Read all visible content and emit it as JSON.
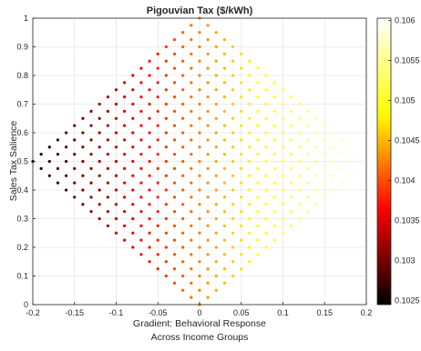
{
  "chart_data": {
    "type": "scatter",
    "title": "Pigouvian Tax ($/kWh)",
    "xlabel_lines": [
      "Gradient: Behavioral Response",
      "Across Income Groups"
    ],
    "ylabel": "Sales Tax Salience",
    "xlim": [
      -0.2,
      0.2
    ],
    "ylim": [
      0,
      1
    ],
    "xticks": [
      "-0.2",
      "-0.15",
      "-0.1",
      "-0.05",
      "0",
      "0.05",
      "0.1",
      "0.15",
      "0.2"
    ],
    "yticks": [
      "0",
      "0.1",
      "0.2",
      "0.3",
      "0.4",
      "0.5",
      "0.6",
      "0.7",
      "0.8",
      "0.9",
      "1"
    ],
    "grid": true,
    "colormap": "hot",
    "color_range": [
      0.10245,
      0.10603
    ],
    "colorbar_ticks": [
      "0.1025",
      "0.103",
      "0.1035",
      "0.104",
      "0.1045",
      "0.105",
      "0.1055",
      "0.106"
    ],
    "colormap_stops": [
      "#000000",
      "#ff0000",
      "#ffff00",
      "#ffffff"
    ],
    "point_color_formula": "color = 0.1025 + 0.0035 * (x + 0.2) / 0.4",
    "point_grid": {
      "x_step": 0.01,
      "y_step": 0.025,
      "region": "|x| / 0.2 + |y - 0.5| / 0.5 <= 1"
    }
  }
}
